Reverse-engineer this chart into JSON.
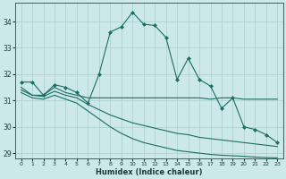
{
  "xlabel": "Humidex (Indice chaleur)",
  "ylabel": "",
  "bg_color": "#cce8e8",
  "grid_color": "#aacece",
  "line_color": "#1a6e62",
  "xlim": [
    -0.5,
    23.5
  ],
  "ylim": [
    28.8,
    34.7
  ],
  "yticks": [
    29,
    30,
    31,
    32,
    33,
    34
  ],
  "xticks": [
    0,
    1,
    2,
    3,
    4,
    5,
    6,
    7,
    8,
    9,
    10,
    11,
    12,
    13,
    14,
    15,
    16,
    17,
    18,
    19,
    20,
    21,
    22,
    23
  ],
  "series": [
    {
      "x": [
        0,
        1,
        2,
        3,
        4,
        5,
        6,
        7,
        8,
        9,
        10,
        11,
        12,
        13,
        14,
        15,
        16,
        17,
        18,
        19,
        20,
        21,
        22,
        23
      ],
      "y": [
        31.7,
        31.7,
        31.2,
        31.6,
        31.5,
        31.3,
        30.9,
        32.0,
        33.6,
        33.8,
        34.35,
        33.9,
        33.85,
        33.4,
        31.8,
        32.6,
        31.8,
        31.55,
        30.7,
        31.1,
        30.0,
        29.9,
        29.7,
        29.4
      ],
      "marker": true
    },
    {
      "x": [
        0,
        1,
        2,
        3,
        4,
        5,
        6,
        7,
        8,
        9,
        10,
        11,
        12,
        13,
        14,
        15,
        16,
        17,
        18,
        19,
        20,
        21,
        22,
        23
      ],
      "y": [
        31.5,
        31.2,
        31.2,
        31.5,
        31.3,
        31.2,
        31.1,
        31.1,
        31.1,
        31.1,
        31.1,
        31.1,
        31.1,
        31.1,
        31.1,
        31.1,
        31.1,
        31.05,
        31.1,
        31.1,
        31.05,
        31.05,
        31.05,
        31.05
      ],
      "marker": false
    },
    {
      "x": [
        0,
        1,
        2,
        3,
        4,
        5,
        6,
        7,
        8,
        9,
        10,
        11,
        12,
        13,
        14,
        15,
        16,
        17,
        18,
        19,
        20,
        21,
        22,
        23
      ],
      "y": [
        31.4,
        31.2,
        31.15,
        31.35,
        31.2,
        31.1,
        30.85,
        30.65,
        30.45,
        30.3,
        30.15,
        30.05,
        29.95,
        29.85,
        29.75,
        29.7,
        29.6,
        29.55,
        29.5,
        29.45,
        29.4,
        29.35,
        29.3,
        29.25
      ],
      "marker": false
    },
    {
      "x": [
        0,
        1,
        2,
        3,
        4,
        5,
        6,
        7,
        8,
        9,
        10,
        11,
        12,
        13,
        14,
        15,
        16,
        17,
        18,
        19,
        20,
        21,
        22,
        23
      ],
      "y": [
        31.3,
        31.1,
        31.05,
        31.2,
        31.05,
        30.9,
        30.6,
        30.3,
        30.0,
        29.75,
        29.55,
        29.4,
        29.3,
        29.2,
        29.1,
        29.05,
        29.0,
        28.95,
        28.92,
        28.9,
        28.88,
        28.85,
        28.83,
        28.82
      ],
      "marker": false
    }
  ]
}
